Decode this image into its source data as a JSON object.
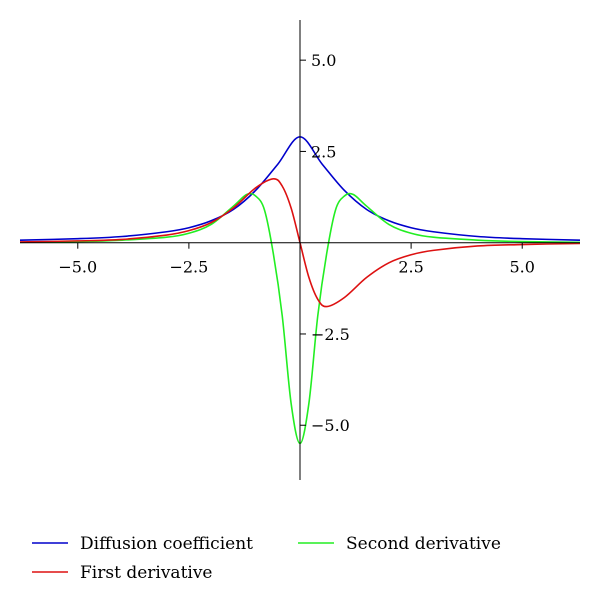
{
  "chart_data": {
    "type": "line",
    "xlim": [
      -6.3,
      6.3
    ],
    "ylim": [
      -6.5,
      6.1
    ],
    "x_ticks": [
      -5.0,
      -2.5,
      2.5,
      5.0
    ],
    "x_tick_labels": [
      "−5.0",
      "−2.5",
      "2.5",
      "5.0"
    ],
    "y_ticks": [
      5.0,
      2.5,
      -2.5,
      -5.0
    ],
    "y_tick_labels": [
      "5.0",
      "2.5",
      "−2.5",
      "−5.0"
    ],
    "grid": false,
    "legend_position": "bottom",
    "series": [
      {
        "name": "Diffusion coefficient",
        "color": "#0000cc",
        "x": [
          -6.3,
          -5,
          -4,
          -3,
          -2.5,
          -2,
          -1.5,
          -1,
          -0.5,
          0,
          0.5,
          1,
          1.5,
          2,
          2.5,
          3,
          4,
          5,
          6.3
        ],
        "y": [
          0.07,
          0.11,
          0.17,
          0.3,
          0.41,
          0.6,
          0.91,
          1.43,
          2.15,
          2.9,
          2.15,
          1.43,
          0.91,
          0.6,
          0.41,
          0.3,
          0.17,
          0.11,
          0.07
        ]
      },
      {
        "name": "First derivative",
        "color": "#dd1111",
        "x": [
          -6.3,
          -5,
          -4,
          -3,
          -2.5,
          -2,
          -1.5,
          -1,
          -0.6,
          -0.4,
          -0.2,
          0,
          0.2,
          0.4,
          0.6,
          1,
          1.5,
          2,
          2.5,
          3,
          4,
          5,
          6.3
        ],
        "y": [
          0.02,
          0.05,
          0.09,
          0.21,
          0.33,
          0.55,
          0.95,
          1.5,
          1.75,
          1.55,
          0.95,
          0.0,
          -0.95,
          -1.55,
          -1.75,
          -1.5,
          -0.95,
          -0.55,
          -0.33,
          -0.21,
          -0.09,
          -0.05,
          -0.02
        ]
      },
      {
        "name": "Second derivative",
        "color": "#22ee22",
        "x": [
          -6.3,
          -5,
          -4,
          -3,
          -2.5,
          -2,
          -1.5,
          -1.2,
          -1,
          -0.8,
          -0.6,
          -0.4,
          -0.2,
          0,
          0.2,
          0.4,
          0.6,
          0.8,
          1,
          1.2,
          1.5,
          2,
          2.5,
          3,
          4,
          5,
          6.3
        ],
        "y": [
          0.01,
          0.03,
          0.07,
          0.15,
          0.26,
          0.5,
          1.0,
          1.32,
          1.28,
          0.9,
          -0.3,
          -2.0,
          -4.4,
          -5.5,
          -4.4,
          -2.0,
          -0.3,
          0.9,
          1.28,
          1.32,
          1.0,
          0.5,
          0.26,
          0.15,
          0.07,
          0.03,
          0.01
        ]
      }
    ]
  }
}
